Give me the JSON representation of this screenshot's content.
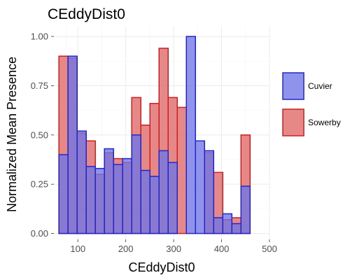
{
  "chart_data": {
    "type": "bar",
    "title": "CEddyDist0",
    "xlabel": "CEddyDist0",
    "ylabel": "Normalized Mean Presence",
    "xlim": [
      50,
      500
    ],
    "ylim": [
      -0.03,
      1.05
    ],
    "x_ticks": [
      100,
      200,
      300,
      400,
      500
    ],
    "y_ticks": [
      0.0,
      0.25,
      0.5,
      0.75,
      1.0
    ],
    "x_tick_labels": [
      "100",
      "200",
      "300",
      "400",
      "500"
    ],
    "y_tick_labels": [
      "0.00",
      "0.25",
      "0.50",
      "0.75",
      "1.00"
    ],
    "bin_width": 19,
    "bin_centers": [
      70,
      89,
      108,
      127,
      146,
      165,
      184,
      203,
      222,
      241,
      260,
      279,
      298,
      317,
      336,
      355,
      374,
      393,
      412,
      431,
      450,
      469,
      488
    ],
    "legend_position": "right",
    "grid": true,
    "series": [
      {
        "name": "Sowerby",
        "fill": "#e06666",
        "stroke": "#cc1f1f",
        "values": [
          0.9,
          0.89,
          0.51,
          0.47,
          0.3,
          0.41,
          0.38,
          0.36,
          0.69,
          0.55,
          0.66,
          0.94,
          0.69,
          0.64,
          0.0,
          0.0,
          0.41,
          0.31,
          0.07,
          0.08,
          0.5,
          0.0,
          0.0
        ]
      },
      {
        "name": "Cuvier",
        "fill": "#6f74e6",
        "stroke": "#2227c8",
        "values": [
          0.4,
          0.9,
          0.52,
          0.34,
          0.33,
          0.43,
          0.35,
          0.38,
          0.5,
          0.32,
          0.29,
          0.42,
          0.36,
          0.0,
          1.0,
          0.47,
          0.42,
          0.08,
          0.1,
          0.05,
          0.24,
          0.0,
          0.0
        ]
      }
    ],
    "legend_order": [
      "Cuvier",
      "Sowerby"
    ]
  }
}
